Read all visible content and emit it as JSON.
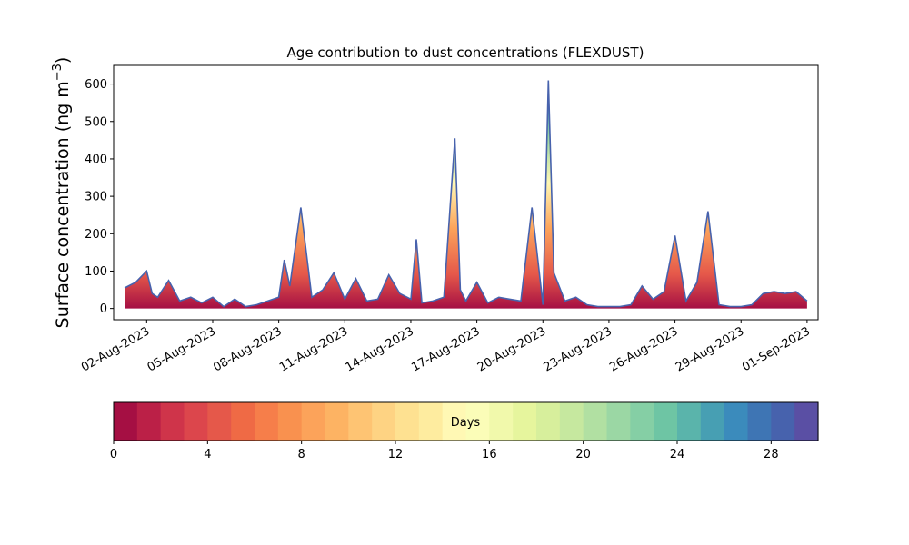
{
  "chart_data": {
    "type": "area",
    "stacked": true,
    "title": "Age contribution to dust concentrations (FLEXDUST)",
    "ylabel": "Surface concentration (ng m$^{-3}$)",
    "ylabel_main": "Surface concentration (ng m",
    "ylabel_sup": "−3",
    "ylabel_close": ")",
    "xlabel": "",
    "xlim": [
      "2023-07-31T12:00",
      "2023-09-01T12:00"
    ],
    "ylim": [
      -30,
      650
    ],
    "yticks": [
      0,
      100,
      200,
      300,
      400,
      500,
      600
    ],
    "xticks": [
      "02-Aug-2023",
      "05-Aug-2023",
      "08-Aug-2023",
      "11-Aug-2023",
      "14-Aug-2023",
      "17-Aug-2023",
      "20-Aug-2023",
      "23-Aug-2023",
      "26-Aug-2023",
      "29-Aug-2023",
      "01-Sep-2023"
    ],
    "xtick_dates": [
      "2023-08-02",
      "2023-08-05",
      "2023-08-08",
      "2023-08-11",
      "2023-08-14",
      "2023-08-17",
      "2023-08-20",
      "2023-08-23",
      "2023-08-26",
      "2023-08-29",
      "2023-09-01"
    ],
    "total_series": {
      "x": [
        "2023-08-01T00:00",
        "2023-08-01T12:00",
        "2023-08-02T00:00",
        "2023-08-02T06:00",
        "2023-08-02T12:00",
        "2023-08-03T00:00",
        "2023-08-03T12:00",
        "2023-08-04T00:00",
        "2023-08-04T12:00",
        "2023-08-05T00:00",
        "2023-08-05T12:00",
        "2023-08-06T00:00",
        "2023-08-06T12:00",
        "2023-08-07T00:00",
        "2023-08-07T12:00",
        "2023-08-08T00:00",
        "2023-08-08T06:00",
        "2023-08-08T12:00",
        "2023-08-09T00:00",
        "2023-08-09T12:00",
        "2023-08-10T00:00",
        "2023-08-10T12:00",
        "2023-08-11T00:00",
        "2023-08-11T12:00",
        "2023-08-12T00:00",
        "2023-08-12T12:00",
        "2023-08-13T00:00",
        "2023-08-13T12:00",
        "2023-08-14T00:00",
        "2023-08-14T06:00",
        "2023-08-14T12:00",
        "2023-08-15T00:00",
        "2023-08-15T12:00",
        "2023-08-16T00:00",
        "2023-08-16T06:00",
        "2023-08-16T12:00",
        "2023-08-17T00:00",
        "2023-08-17T12:00",
        "2023-08-18T00:00",
        "2023-08-18T12:00",
        "2023-08-19T00:00",
        "2023-08-19T12:00",
        "2023-08-20T00:00",
        "2023-08-20T06:00",
        "2023-08-20T12:00",
        "2023-08-21T00:00",
        "2023-08-21T12:00",
        "2023-08-22T00:00",
        "2023-08-22T12:00",
        "2023-08-23T00:00",
        "2023-08-23T12:00",
        "2023-08-24T00:00",
        "2023-08-24T12:00",
        "2023-08-25T00:00",
        "2023-08-25T12:00",
        "2023-08-26T00:00",
        "2023-08-26T12:00",
        "2023-08-27T00:00",
        "2023-08-27T12:00",
        "2023-08-28T00:00",
        "2023-08-28T12:00",
        "2023-08-29T00:00",
        "2023-08-29T12:00",
        "2023-08-30T00:00",
        "2023-08-30T12:00",
        "2023-08-31T00:00",
        "2023-08-31T12:00",
        "2023-09-01T00:00"
      ],
      "y": [
        55,
        70,
        100,
        40,
        30,
        75,
        20,
        30,
        15,
        30,
        5,
        25,
        5,
        10,
        20,
        30,
        130,
        60,
        270,
        30,
        50,
        95,
        25,
        80,
        20,
        25,
        90,
        40,
        25,
        185,
        15,
        20,
        30,
        455,
        50,
        20,
        70,
        15,
        30,
        25,
        20,
        270,
        10,
        610,
        95,
        20,
        30,
        10,
        5,
        5,
        5,
        10,
        60,
        25,
        45,
        195,
        20,
        70,
        260,
        10,
        5,
        5,
        10,
        40,
        45,
        40,
        45,
        20
      ]
    },
    "colorbar": {
      "label": "Days",
      "ticks": [
        0,
        4,
        8,
        12,
        16,
        20,
        24,
        28
      ],
      "range": [
        0,
        30
      ],
      "colors": [
        "#a50f43",
        "#bb2047",
        "#cf344a",
        "#dc464c",
        "#e5584a",
        "#ef6a45",
        "#f67e4a",
        "#f9914f",
        "#fca35a",
        "#fdb363",
        "#fec473",
        "#fed383",
        "#fee191",
        "#feec9f",
        "#fff8b4",
        "#fbfdb8",
        "#f1f9ab",
        "#e6f59d",
        "#d7ef9c",
        "#c6e89f",
        "#b1e0a2",
        "#9bd7a4",
        "#85cfa5",
        "#6ec5a4",
        "#5ab4ab",
        "#479fb3",
        "#3b8bbc",
        "#3e75b4",
        "#4762ad",
        "#5a4fa4"
      ]
    }
  }
}
